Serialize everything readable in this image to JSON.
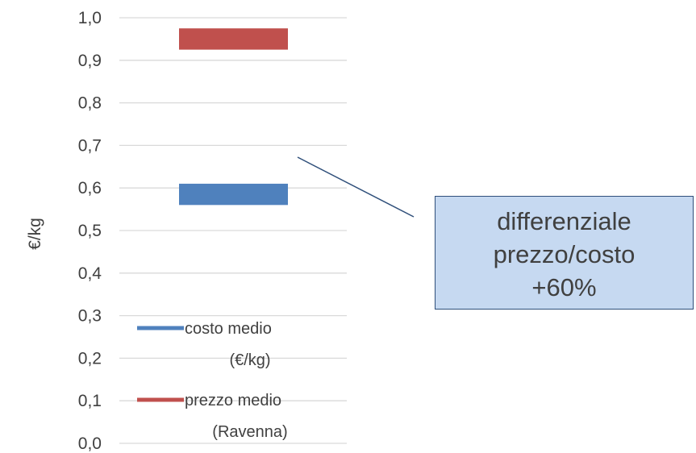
{
  "chart_data": {
    "type": "bar",
    "subtype": "floating-range",
    "title": "",
    "xlabel": "",
    "ylabel": "€/kg",
    "ylim": [
      0,
      1.0
    ],
    "yticks": [
      "0,0",
      "0,1",
      "0,2",
      "0,3",
      "0,4",
      "0,5",
      "0,6",
      "0,7",
      "0,8",
      "0,9",
      "1,0"
    ],
    "grid": true,
    "legend_position": "bottom-left (inside plot)",
    "series": [
      {
        "name": "costo medio (€/kg)",
        "color": "#4f81bd",
        "low": 0.56,
        "high": 0.61
      },
      {
        "name": "prezzo medio (Ravenna)",
        "color": "#c0504d",
        "low": 0.925,
        "high": 0.975
      }
    ],
    "legend": [
      {
        "line1": "costo medio",
        "line2": "(€/kg)",
        "color": "#4f81bd"
      },
      {
        "line1": "prezzo medio",
        "line2": "(Ravenna)",
        "color": "#c0504d"
      }
    ],
    "annotation": {
      "text": "differenziale\nprezzo/costo\n+60%"
    }
  }
}
